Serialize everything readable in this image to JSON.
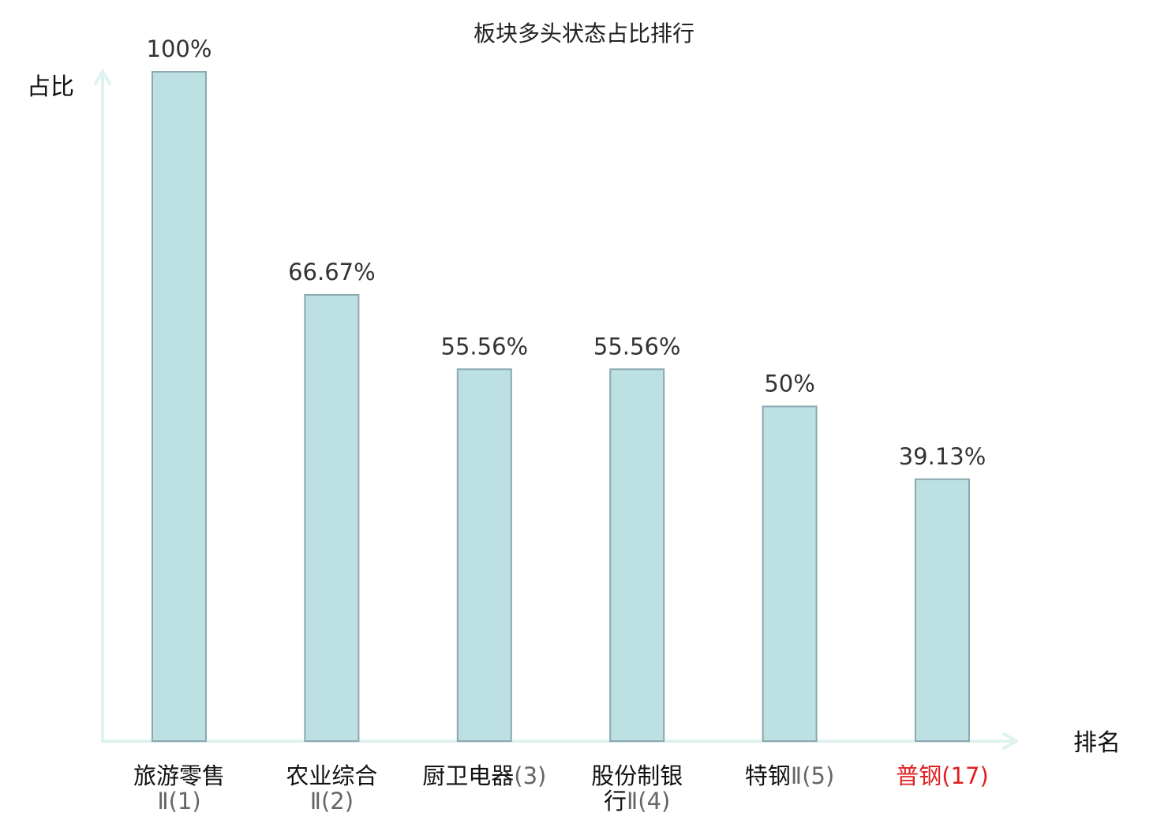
{
  "chart_data": {
    "type": "bar",
    "title": "板块多头状态占比排行",
    "ylabel": "占比",
    "xlabel": "排名",
    "ylim": [
      0,
      100
    ],
    "grid": false,
    "legend": "none",
    "categories": [
      {
        "lines": [
          {
            "name": "旅游零售",
            "rank": ""
          },
          {
            "name": "",
            "rank": "Ⅱ(1)"
          }
        ]
      },
      {
        "lines": [
          {
            "name": "农业综合",
            "rank": ""
          },
          {
            "name": "",
            "rank": "Ⅱ(2)"
          }
        ]
      },
      {
        "lines": [
          {
            "name": "厨卫电器",
            "rank": "(3)"
          }
        ]
      },
      {
        "lines": [
          {
            "name": "股份制银",
            "rank": ""
          },
          {
            "name": "行",
            "rank": "Ⅱ(4)"
          }
        ]
      },
      {
        "lines": [
          {
            "name": "特钢",
            "rank": "Ⅱ(5)"
          }
        ]
      },
      {
        "lines": [
          {
            "name": "普钢",
            "rank": "(17)"
          }
        ],
        "highlight": true
      }
    ],
    "values": [
      100,
      66.67,
      55.56,
      55.56,
      50,
      39.13
    ],
    "data_labels": [
      "100%",
      "66.67%",
      "55.56%",
      "55.56%",
      "50%",
      "39.13%"
    ],
    "colors": {
      "bar_fill": "#bde0e3",
      "bar_stroke": "#8aa8ad",
      "axis": "#e0f2ef",
      "highlight": "#e02020"
    }
  }
}
